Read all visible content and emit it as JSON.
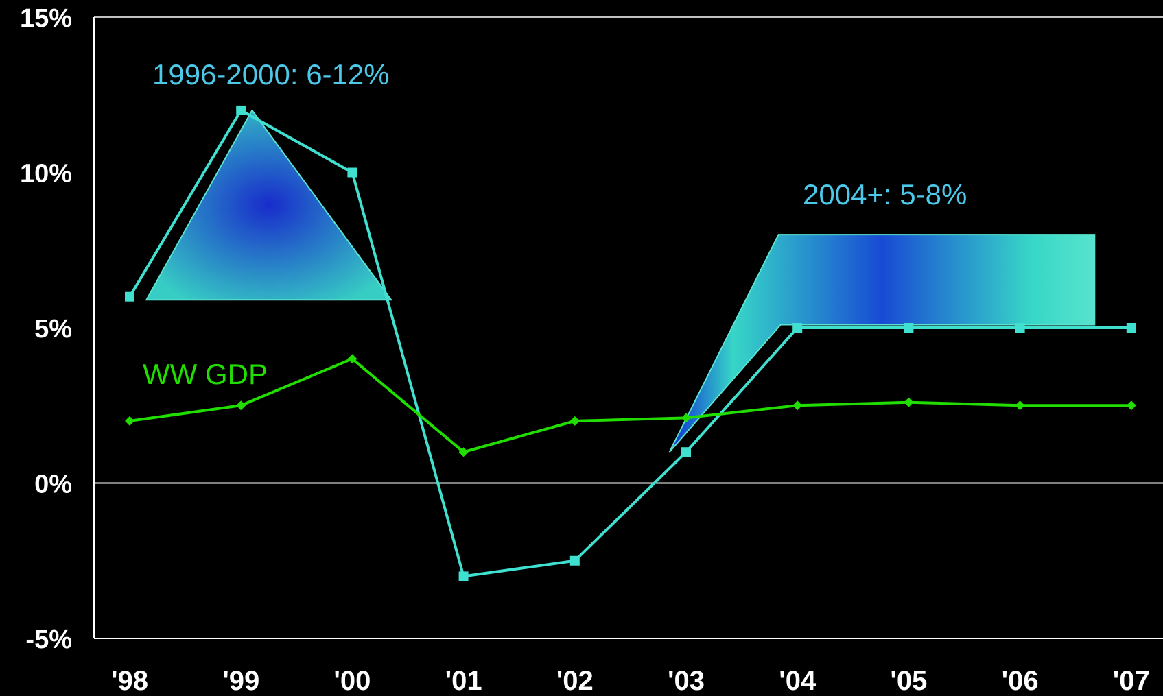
{
  "chart_data": {
    "type": "line",
    "categories": [
      "'98",
      "'99",
      "'00",
      "'01",
      "'02",
      "'03",
      "'04",
      "'05",
      "'06",
      "'07"
    ],
    "ylim": [
      -5,
      15
    ],
    "yticks": [
      -5,
      0,
      5,
      10,
      15
    ],
    "ytick_labels": [
      "-5%",
      "0%",
      "5%",
      "10%",
      "15%"
    ],
    "grid": false,
    "series": [
      {
        "color": "#40e0d0",
        "marker": "square",
        "values": [
          6,
          12,
          10,
          -3,
          -2.5,
          1,
          5,
          5,
          5,
          5
        ]
      },
      {
        "name": "WW GDP",
        "color": "#22dd00",
        "marker": "diamond",
        "values": [
          2,
          2.5,
          4,
          1,
          2,
          2.1,
          2.5,
          2.6,
          2.5,
          2.5
        ]
      }
    ],
    "bands": [
      {
        "label": "1996-2000: 6-12%",
        "points": [
          [
            0.15,
            5.9
          ],
          [
            1.1,
            12
          ],
          [
            2.35,
            5.9
          ]
        ]
      },
      {
        "label": "2004+: 5-8%",
        "points": [
          [
            4.85,
            1
          ],
          [
            5.83,
            8
          ],
          [
            8.67,
            8
          ],
          [
            8.67,
            5.1
          ],
          [
            5.85,
            5.1
          ]
        ]
      }
    ],
    "annotations": [
      {
        "text": "1996-2000: 6-12%",
        "color": "#4cc8e8"
      },
      {
        "text": "2004+: 5-8%",
        "color": "#4cc8e8"
      },
      {
        "text": "WW GDP",
        "color": "#22dd00"
      }
    ]
  }
}
